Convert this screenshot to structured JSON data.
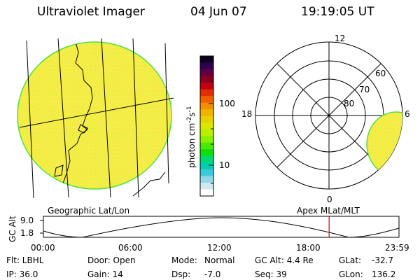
{
  "header": {
    "instrument": "Ultraviolet Imager",
    "date": "04 Jun 07",
    "time": "19:19:05 UT"
  },
  "globe_panel": {
    "label": "Geographic Lat/Lon"
  },
  "colorbar": {
    "label": "photon cm",
    "label_exp1": "-2",
    "label_s": "s",
    "label_exp2": "-1",
    "tick_labels": [
      "100",
      "10"
    ],
    "colors": [
      "#0a0020",
      "#300050",
      "#600040",
      "#8a0020",
      "#c00010",
      "#e03000",
      "#f06000",
      "#f49000",
      "#f0b400",
      "#e8d000",
      "#d8e800",
      "#b8f000",
      "#88f000",
      "#48e800",
      "#10dc10",
      "#00d870",
      "#00d0b0",
      "#40c8d8",
      "#90d8e8",
      "#d0e8f0",
      "#ffffff"
    ]
  },
  "polar_panel": {
    "label": "Apex MLat/MLT",
    "mlt_labels": {
      "top": "12",
      "left": "18",
      "right": "6",
      "bottom": "0"
    },
    "lat_labels": [
      "60",
      "70",
      "80"
    ]
  },
  "timeline": {
    "axis_title": "GC Alt",
    "y_ticks": [
      "9.0",
      "1.8"
    ],
    "x_ticks": [
      "00:00",
      "06:00",
      "12:00",
      "18:00",
      "23:59"
    ],
    "current_time_fraction": 0.8035
  },
  "status": {
    "filter": "Flt: LBHL",
    "door": "Door: Open",
    "mode_label": "Mode:",
    "mode_value": "Normal",
    "gc_alt": "GC Alt: 4.4 Re",
    "glat_label": "GLat:",
    "glat_value": "-32.7",
    "ip": "IP: 36.0",
    "gain": "Gain: 14",
    "dsp_label": "Dsp:",
    "dsp_value": "-7.0",
    "seq": "Seq: 39",
    "glon_label": "GLon:",
    "glon_value": "136.2"
  },
  "colors": {
    "aurora_fill": "#f8ec40",
    "aurora_edge": "#50e040",
    "marker": "#d00000"
  }
}
